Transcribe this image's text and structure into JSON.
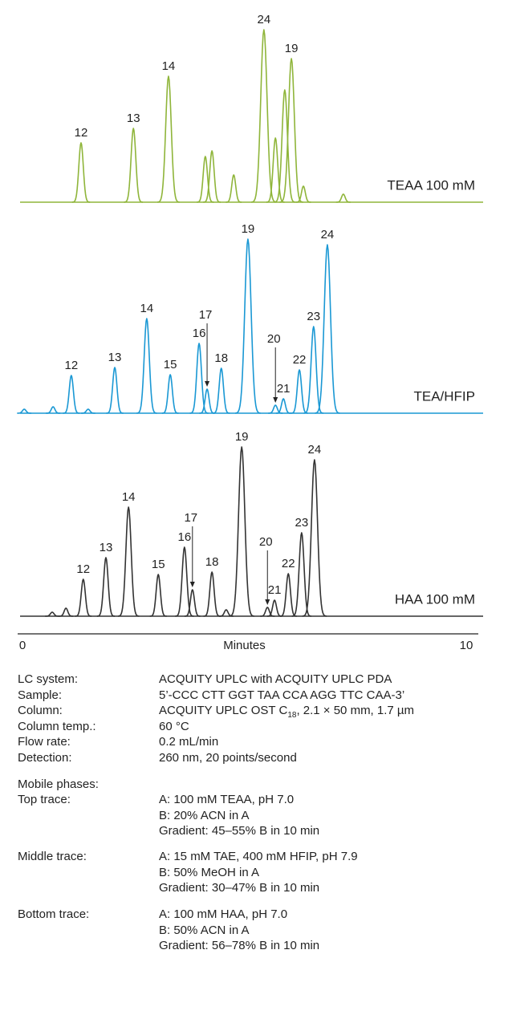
{
  "chart_data": {
    "type": "chromatogram",
    "xlabel": "Minutes",
    "xlim": [
      0,
      10
    ],
    "xticks": [
      0,
      10
    ],
    "series": [
      {
        "name": "TEAA 100 mM",
        "color": "#8fb53a",
        "peaks": [
          {
            "label": "12",
            "x": 1.32,
            "height": 74
          },
          {
            "label": "13",
            "x": 2.5,
            "height": 92
          },
          {
            "label": "14",
            "x": 3.29,
            "height": 157
          },
          {
            "label": null,
            "x": 4.12,
            "height": 57
          },
          {
            "label": null,
            "x": 4.27,
            "height": 64
          },
          {
            "label": null,
            "x": 4.76,
            "height": 34
          },
          {
            "label": "24",
            "x": 5.44,
            "height": 215
          },
          {
            "label": null,
            "x": 5.7,
            "height": 80
          },
          {
            "label": null,
            "x": 5.91,
            "height": 140
          },
          {
            "label": "19",
            "x": 6.06,
            "height": 179
          },
          {
            "label": null,
            "x": 6.33,
            "height": 20
          },
          {
            "label": null,
            "x": 7.23,
            "height": 10
          }
        ]
      },
      {
        "name": "TEA/HFIP",
        "color": "#1a98d4",
        "peaks": [
          {
            "label": null,
            "x": 0.04,
            "height": 5
          },
          {
            "label": null,
            "x": 0.69,
            "height": 8
          },
          {
            "label": "12",
            "x": 1.1,
            "height": 47
          },
          {
            "label": null,
            "x": 1.48,
            "height": 5
          },
          {
            "label": "13",
            "x": 2.08,
            "height": 57
          },
          {
            "label": "14",
            "x": 2.8,
            "height": 118
          },
          {
            "label": "15",
            "x": 3.33,
            "height": 48
          },
          {
            "label": "16",
            "x": 3.98,
            "height": 87
          },
          {
            "label": "17",
            "x": 4.16,
            "height": 30,
            "arrow": true
          },
          {
            "label": "18",
            "x": 4.48,
            "height": 56
          },
          {
            "label": "19",
            "x": 5.08,
            "height": 217
          },
          {
            "label": "20",
            "x": 5.7,
            "height": 10,
            "arrow": true
          },
          {
            "label": "21",
            "x": 5.88,
            "height": 18
          },
          {
            "label": "22",
            "x": 6.24,
            "height": 54
          },
          {
            "label": "23",
            "x": 6.56,
            "height": 108
          },
          {
            "label": "24",
            "x": 6.87,
            "height": 210
          }
        ]
      },
      {
        "name": "HAA 100 mM",
        "color": "#333333",
        "peaks": [
          {
            "label": null,
            "x": 0.67,
            "height": 5
          },
          {
            "label": null,
            "x": 0.98,
            "height": 10
          },
          {
            "label": "12",
            "x": 1.37,
            "height": 46
          },
          {
            "label": "13",
            "x": 1.88,
            "height": 73
          },
          {
            "label": "14",
            "x": 2.39,
            "height": 136
          },
          {
            "label": "15",
            "x": 3.06,
            "height": 52
          },
          {
            "label": "16",
            "x": 3.65,
            "height": 86
          },
          {
            "label": "17",
            "x": 3.83,
            "height": 33,
            "arrow": true
          },
          {
            "label": "18",
            "x": 4.27,
            "height": 55
          },
          {
            "label": null,
            "x": 4.59,
            "height": 8
          },
          {
            "label": "19",
            "x": 4.94,
            "height": 211
          },
          {
            "label": "20",
            "x": 5.52,
            "height": 11,
            "arrow": true
          },
          {
            "label": "21",
            "x": 5.68,
            "height": 20
          },
          {
            "label": "22",
            "x": 5.99,
            "height": 53
          },
          {
            "label": "23",
            "x": 6.29,
            "height": 104
          },
          {
            "label": "24",
            "x": 6.58,
            "height": 195
          }
        ]
      }
    ]
  },
  "method": {
    "rows": [
      [
        "LC system:",
        "ACQUITY UPLC with ACQUITY UPLC PDA"
      ],
      [
        "Sample:",
        "5’-CCC CTT GGT TAA CCA AGG TTC CAA-3’"
      ],
      [
        "Column:",
        "ACQUITY UPLC OST C",
        "18",
        ", 2.1 × 50 mm, 1.7 µm"
      ],
      [
        "Column temp.:",
        "60 °C"
      ],
      [
        "Flow rate:",
        "0.2 mL/min"
      ],
      [
        "Detection:",
        "260 nm, 20 points/second"
      ]
    ],
    "mobile_phases": "Mobile phases:",
    "traces": [
      {
        "label": "Top trace:",
        "lines": [
          "A: 100 mM TEAA, pH 7.0",
          "B: 20% ACN in A",
          "Gradient: 45–55% B in 10 min"
        ]
      },
      {
        "label": "Middle trace:",
        "lines": [
          "A: 15 mM TAE, 400 mM HFIP, pH 7.9",
          "B: 50% MeOH in A",
          "Gradient: 30–47% B in 10 min"
        ]
      },
      {
        "label": "Bottom trace:",
        "lines": [
          "A: 100 mM HAA, pH 7.0",
          "B: 50% ACN in A",
          "Gradient: 56–78% B in 10 min"
        ]
      }
    ]
  }
}
